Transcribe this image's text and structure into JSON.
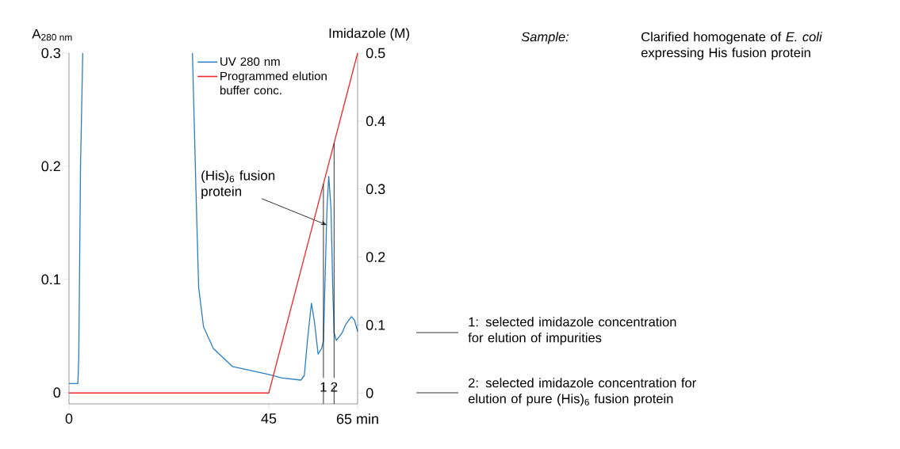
{
  "chart_data": {
    "type": "line",
    "ylabel": "A$_{280 nm}$",
    "y2label": "Imidazole (M)",
    "xlim": [
      0,
      65
    ],
    "xticks": [
      0,
      45,
      {
        "value": 65,
        "label": "65 min"
      }
    ],
    "ylim": [
      -0.01,
      0.3
    ],
    "yticks": [
      0,
      0.1,
      0.2,
      0.3
    ],
    "y2lim": [
      -0.016,
      0.5
    ],
    "y2ticks": [
      0,
      0.1,
      0.2,
      0.3,
      0.4,
      0.5
    ],
    "legend": "top",
    "series": [
      {
        "name": "UV 280 nm",
        "color": "#2a7fc4",
        "x": [
          0,
          2.0,
          2.2,
          2.6,
          3.1,
          15,
          27.8,
          28.7,
          29.2,
          30.3,
          32.5,
          36.8,
          45,
          47.8,
          52.2,
          53.0,
          53.7,
          54.6,
          55.3,
          56.1,
          56.9,
          57.3,
          57.7,
          58.1,
          58.5,
          59.0,
          59.4,
          59.7,
          60.2,
          61.4,
          62.3,
          63.6,
          64.3,
          65
        ],
        "values": [
          0.008,
          0.008,
          0.03,
          0.2,
          0.3,
          null,
          0.3,
          0.163,
          0.093,
          0.058,
          0.039,
          0.023,
          0.016,
          0.013,
          0.011,
          0.015,
          0.046,
          0.079,
          0.062,
          0.034,
          0.039,
          0.046,
          0.104,
          0.163,
          0.191,
          0.163,
          0.093,
          0.053,
          0.046,
          0.052,
          0.06,
          0.067,
          0.064,
          0.054
        ]
      },
      {
        "name": "Programmed elution buffer conc.",
        "color": "#f0282d",
        "axis": "y2",
        "x": [
          0,
          45,
          65
        ],
        "values": [
          0,
          0,
          0.5
        ]
      }
    ],
    "ref_lines": [
      {
        "axis": "x",
        "value": 57.3
      },
      {
        "axis": "x",
        "value": 59.7
      }
    ],
    "annotations": [
      {
        "text": "(His)$_{6}$ fusion protein",
        "x": 58.1,
        "y": 0.148
      },
      "Sample:",
      "Clarified homogenate of *E. coli* expressing His fusion protein",
      "1: selected imidazole concentration for elution of impurities",
      "2: selected imidazole concentration for elution of pure (His)$_{6}$ fusion protein",
      "1",
      "2"
    ]
  }
}
